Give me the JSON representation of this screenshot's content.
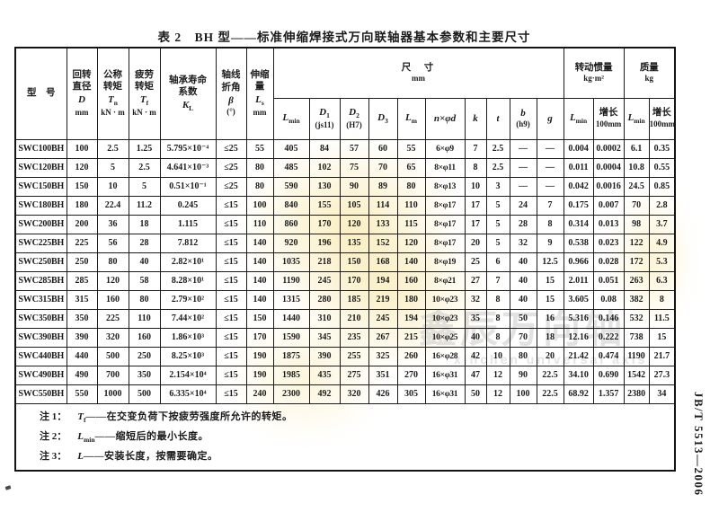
{
  "page": {
    "title": "表 2　BH 型——标准伸缩焊接式万向联轴器基本参数和主要尺寸",
    "standard_code": "JB/T 5513—2006"
  },
  "watermark": {
    "text_cn": "鑫辰万向轴",
    "text_en": "xinchen universal axis",
    "stamp_color": "#f6e08c",
    "gray_color": "#c7c7c7"
  },
  "table": {
    "header": {
      "model": "型　号",
      "d": {
        "l1": "回转",
        "l2": "直径",
        "sym": "D",
        "unit": "mm"
      },
      "tn": {
        "l1": "公称",
        "l2": "转矩",
        "sym": "T",
        "sub": "n",
        "unit": "kN · m"
      },
      "tf": {
        "l1": "疲劳",
        "l2": "转矩",
        "sym": "T",
        "sub": "f",
        "unit": "kN · m"
      },
      "kl": {
        "l1": "轴承寿命",
        "l2": "系数",
        "sym": "K",
        "sub": "L",
        "unit": ""
      },
      "beta": {
        "l1": "轴线",
        "l2": "折角",
        "sym": "β",
        "unit": "(°)"
      },
      "ls": {
        "l1": "伸缩量",
        "sym": "L",
        "sub": "s",
        "unit": "mm"
      },
      "size": {
        "title": "尺　寸",
        "unit": "mm"
      },
      "inertia": {
        "title": "转动惯量",
        "unit": "kg·m²"
      },
      "mass": {
        "title": "质量",
        "unit": "kg"
      }
    },
    "subheaders": [
      {
        "sym": "L",
        "sub": "min"
      },
      {
        "sym": "D",
        "sub": "1",
        "paren": "(js11)"
      },
      {
        "sym": "D",
        "sub": "2",
        "paren": "(H7)"
      },
      {
        "sym": "D",
        "sub": "3"
      },
      {
        "sym": "L",
        "sub": "m"
      },
      {
        "text": "n×φd",
        "it": true
      },
      {
        "sym": "k"
      },
      {
        "sym": "t"
      },
      {
        "sym": "b",
        "paren": "(h9)"
      },
      {
        "sym": "g"
      },
      {
        "sym": "L",
        "sub": "min"
      },
      {
        "text": "增长",
        "paren": "100mm"
      },
      {
        "sym": "L",
        "sub": "min"
      },
      {
        "text": "增长",
        "paren": "100mm"
      }
    ],
    "rows": [
      [
        "SWC100BH",
        "100",
        "2.5",
        "1.25",
        "5.795×10⁻⁴",
        "≤25",
        "55",
        "405",
        "84",
        "57",
        "60",
        "55",
        "6×φ9",
        "7",
        "2.5",
        "—",
        "—",
        "0.004",
        "0.0002",
        "6.1",
        "0.35"
      ],
      [
        "SWC120BH",
        "120",
        "5",
        "2.5",
        "4.641×10⁻³",
        "≤25",
        "80",
        "485",
        "102",
        "75",
        "70",
        "65",
        "8×φ11",
        "8",
        "2.5",
        "—",
        "—",
        "0.011",
        "0.0004",
        "10.8",
        "0.55"
      ],
      [
        "SWC150BH",
        "150",
        "10",
        "5",
        "0.51×10⁻¹",
        "≤25",
        "80",
        "590",
        "130",
        "90",
        "89",
        "80",
        "8×φ13",
        "10",
        "3",
        "—",
        "—",
        "0.042",
        "0.0016",
        "24.5",
        "0.85"
      ],
      [
        "SWC180BH",
        "180",
        "22.4",
        "11.2",
        "0.245",
        "≤15",
        "100",
        "840",
        "155",
        "105",
        "114",
        "110",
        "8×φ17",
        "17",
        "5",
        "24",
        "7",
        "0.175",
        "0.007",
        "70",
        "2.8"
      ],
      [
        "SWC200BH",
        "200",
        "36",
        "18",
        "1.115",
        "≤15",
        "110",
        "860",
        "170",
        "120",
        "133",
        "115",
        "8×φ17",
        "17",
        "5",
        "28",
        "8",
        "0.314",
        "0.013",
        "98",
        "3.7"
      ],
      [
        "SWC225BH",
        "225",
        "56",
        "28",
        "7.812",
        "≤15",
        "140",
        "920",
        "196",
        "135",
        "152",
        "120",
        "8×φ17",
        "20",
        "5",
        "32",
        "9",
        "0.538",
        "0.023",
        "122",
        "4.9"
      ],
      [
        "SWC250BH",
        "250",
        "80",
        "40",
        "2.82×10¹",
        "≤15",
        "140",
        "1035",
        "218",
        "150",
        "168",
        "140",
        "8×φ19",
        "25",
        "6",
        "40",
        "12.5",
        "0.966",
        "0.028",
        "172",
        "5.3"
      ],
      [
        "SWC285BH",
        "285",
        "120",
        "58",
        "8.28×10¹",
        "≤15",
        "140",
        "1190",
        "245",
        "170",
        "194",
        "160",
        "8×φ21",
        "27",
        "7",
        "40",
        "15",
        "2.011",
        "0.051",
        "263",
        "6.3"
      ],
      [
        "SWC315BH",
        "315",
        "160",
        "80",
        "2.79×10²",
        "≤15",
        "140",
        "1315",
        "280",
        "185",
        "219",
        "180",
        "10×φ23",
        "32",
        "8",
        "40",
        "15",
        "3.605",
        "0.08",
        "382",
        "8"
      ],
      [
        "SWC350BH",
        "350",
        "225",
        "110",
        "7.44×10²",
        "≤15",
        "150",
        "1440",
        "310",
        "210",
        "245",
        "194",
        "10×φ23",
        "35",
        "8",
        "50",
        "16",
        "5.316",
        "0.146",
        "532",
        "11.5"
      ],
      [
        "SWC390BH",
        "390",
        "320",
        "160",
        "1.86×10³",
        "≤15",
        "170",
        "1590",
        "345",
        "235",
        "267",
        "215",
        "10×φ25",
        "40",
        "8",
        "70",
        "18",
        "12.16",
        "0.222",
        "738",
        "15"
      ],
      [
        "SWC440BH",
        "440",
        "500",
        "250",
        "8.25×10³",
        "≤15",
        "190",
        "1875",
        "390",
        "255",
        "325",
        "260",
        "16×φ28",
        "42",
        "10",
        "80",
        "20",
        "21.42",
        "0.474",
        "1190",
        "21.7"
      ],
      [
        "SWC490BH",
        "490",
        "700",
        "350",
        "2.154×10⁴",
        "≤15",
        "190",
        "1985",
        "435",
        "275",
        "351",
        "270",
        "16×φ31",
        "47",
        "12",
        "90",
        "22.5",
        "34.10",
        "0.690",
        "1542",
        "27.3"
      ],
      [
        "SWC550BH",
        "550",
        "1000",
        "500",
        "6.335×10⁴",
        "≤15",
        "240",
        "2300",
        "492",
        "320",
        "426",
        "305",
        "16×φ31",
        "50",
        "12",
        "100",
        "22.5",
        "68.92",
        "1.357",
        "2380",
        "34"
      ]
    ],
    "notes": [
      {
        "prefix": "注 1：",
        "sym": "T",
        "sub": "f",
        "rest": "——在交变负荷下按疲劳强度所允许的转矩。"
      },
      {
        "prefix": "注 2：",
        "sym": "L",
        "sub": "min",
        "rest": "——缩短后的最小长度。"
      },
      {
        "prefix": "注 3：",
        "sym": "L",
        "sub": "",
        "rest": "——安装长度，按需要确定。"
      }
    ]
  }
}
